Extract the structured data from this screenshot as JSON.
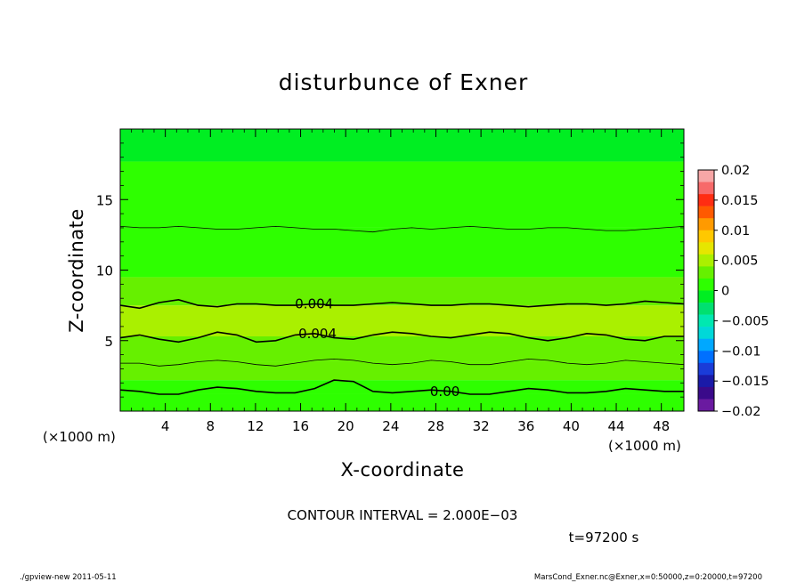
{
  "chart_data": {
    "type": "contour",
    "title": "disturbunce of Exner",
    "xlabel": "X-coordinate",
    "ylabel": "Z-coordinate",
    "x_unit": "(×1000 m)",
    "z_unit": "(×1000 m)",
    "xlim": [
      0,
      50
    ],
    "ylim": [
      0,
      20
    ],
    "x_ticks": [
      4,
      8,
      12,
      16,
      20,
      24,
      28,
      32,
      36,
      40,
      44,
      48
    ],
    "y_ticks": [
      5,
      10,
      15
    ],
    "colorbar": {
      "ticks": [
        "0.02",
        "0.015",
        "0.01",
        "0.005",
        "0",
        "−0.005",
        "−0.01",
        "−0.015",
        "−0.02"
      ],
      "range": [
        -0.02,
        0.02
      ],
      "colors": [
        "#f7a6a6",
        "#f76a6a",
        "#ff2d12",
        "#ff5a00",
        "#ff9a00",
        "#ffc800",
        "#e6e600",
        "#aaf000",
        "#66f000",
        "#2eff00",
        "#00ee22",
        "#00e070",
        "#00e8b0",
        "#00d8d8",
        "#00a8ff",
        "#0070ff",
        "#1a3cd8",
        "#1a1aa8",
        "#3a0a8a",
        "#6a1aa0"
      ]
    },
    "bands": [
      {
        "z_low": 0,
        "z_high": 1.2,
        "value": 0.0005
      },
      {
        "z_low": 1.2,
        "z_high": 2.2,
        "value": 0.0015
      },
      {
        "z_low": 2.2,
        "z_high": 3.5,
        "value": 0.003
      },
      {
        "z_low": 3.5,
        "z_high": 5.3,
        "value": 0.004
      },
      {
        "z_low": 5.3,
        "z_high": 7.5,
        "value": 0.0045
      },
      {
        "z_low": 7.5,
        "z_high": 9.5,
        "value": 0.003
      },
      {
        "z_low": 9.5,
        "z_high": 13,
        "value": 0.0015
      },
      {
        "z_low": 13,
        "z_high": 17.7,
        "value": 0.0005
      },
      {
        "z_low": 17.7,
        "z_high": 20,
        "value": -0.0003
      }
    ],
    "contour_lines": [
      {
        "level": "0.00",
        "label": "0.00",
        "z": [
          1.5,
          1.4,
          1.2,
          1.2,
          1.5,
          1.7,
          1.6,
          1.4,
          1.3,
          1.3,
          1.6,
          2.2,
          2.1,
          1.4,
          1.3,
          1.4,
          1.5,
          1.4,
          1.2,
          1.2,
          1.4,
          1.6,
          1.5,
          1.3,
          1.3,
          1.4,
          1.6,
          1.5,
          1.4,
          1.4
        ]
      },
      {
        "level": "0.002",
        "label": "",
        "z": [
          3.4,
          3.4,
          3.2,
          3.3,
          3.5,
          3.6,
          3.5,
          3.3,
          3.2,
          3.4,
          3.6,
          3.7,
          3.6,
          3.4,
          3.3,
          3.4,
          3.6,
          3.5,
          3.3,
          3.3,
          3.5,
          3.7,
          3.6,
          3.4,
          3.3,
          3.4,
          3.6,
          3.5,
          3.4,
          3.3
        ]
      },
      {
        "level": "0.004",
        "label": "0.004",
        "z": [
          5.2,
          5.4,
          5.1,
          4.9,
          5.2,
          5.6,
          5.4,
          4.9,
          5.0,
          5.4,
          5.5,
          5.2,
          5.1,
          5.4,
          5.6,
          5.5,
          5.3,
          5.2,
          5.4,
          5.6,
          5.5,
          5.2,
          5.0,
          5.2,
          5.5,
          5.4,
          5.1,
          5.0,
          5.3,
          5.3
        ]
      },
      {
        "level": "0.004",
        "label": "0.004",
        "z": [
          7.5,
          7.3,
          7.7,
          7.9,
          7.5,
          7.4,
          7.6,
          7.6,
          7.5,
          7.5,
          7.6,
          7.5,
          7.5,
          7.6,
          7.7,
          7.6,
          7.5,
          7.5,
          7.6,
          7.6,
          7.5,
          7.4,
          7.5,
          7.6,
          7.6,
          7.5,
          7.6,
          7.8,
          7.7,
          7.6
        ]
      },
      {
        "level": "0.002",
        "label": "",
        "z": [
          13.1,
          13.0,
          13.0,
          13.1,
          13.0,
          12.9,
          12.9,
          13.0,
          13.1,
          13.0,
          12.9,
          12.9,
          12.8,
          12.7,
          12.9,
          13.0,
          12.9,
          13.0,
          13.1,
          13.0,
          12.9,
          12.9,
          13.0,
          13.0,
          12.9,
          12.8,
          12.8,
          12.9,
          13.0,
          13.1
        ]
      }
    ],
    "annotations": {
      "contour_interval": "CONTOUR INTERVAL = 2.000E−03",
      "time": "t=97200 s"
    }
  },
  "footer": {
    "left": "./gpview-new   2011-05-11",
    "right": "MarsCond_Exner.nc@Exner,x=0:50000,z=0:20000,t=97200"
  }
}
